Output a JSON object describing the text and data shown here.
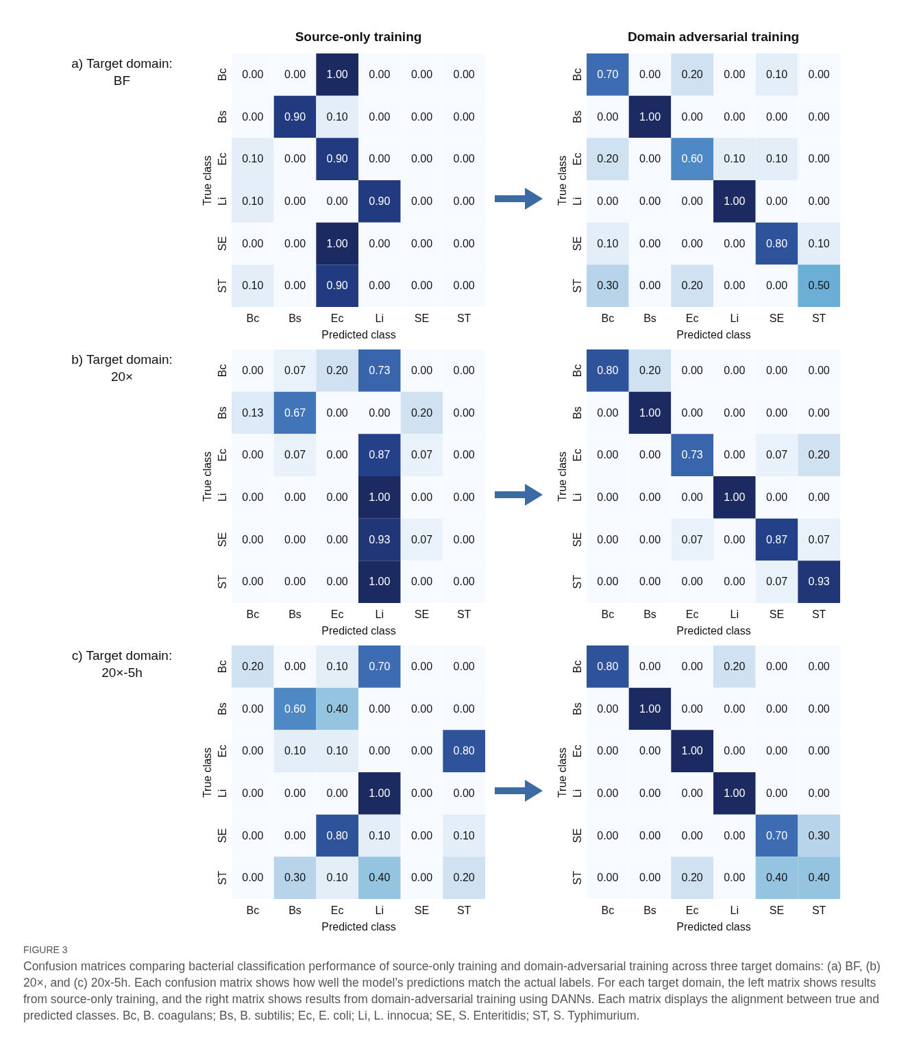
{
  "chart_data": [
    {
      "type": "heatmap",
      "title": "Source-only training",
      "xlabel": "Predicted class",
      "ylabel": "True class",
      "annotations": [
        "a) Target domain:\nBF"
      ],
      "categories": [
        "Bc",
        "Bs",
        "Ec",
        "Li",
        "SE",
        "ST"
      ],
      "y_categories": [
        "Bc",
        "Bs",
        "Ec",
        "Li",
        "SE",
        "ST"
      ],
      "cells": [
        [
          0,
          0,
          1,
          0,
          0,
          0
        ],
        [
          0,
          0.9,
          0.1,
          0,
          0,
          0
        ],
        [
          0.1,
          0,
          0.9,
          0,
          0,
          0
        ],
        [
          0.1,
          0,
          0,
          0.9,
          0,
          0
        ],
        [
          0,
          0,
          1,
          0,
          0,
          0
        ],
        [
          0.1,
          0,
          0.9,
          0,
          0,
          0
        ]
      ],
      "cell_labels": [
        [
          "0.00",
          "0.00",
          "1.00",
          "0.00",
          "0.00",
          "0.00"
        ],
        [
          "0.00",
          "0.90",
          "0.10",
          "0.00",
          "0.00",
          "0.00"
        ],
        [
          "0.10",
          "0.00",
          "0.90",
          "0.00",
          "0.00",
          "0.00"
        ],
        [
          "0.10",
          "0.00",
          "0.00",
          "0.90",
          "0.00",
          "0.00"
        ],
        [
          "0.00",
          "0.00",
          "1.00",
          "0.00",
          "0.00",
          "0.00"
        ],
        [
          "0.10",
          "0.00",
          "0.90",
          "0.00",
          "0.00",
          "0.00"
        ]
      ]
    },
    {
      "type": "heatmap",
      "title": "Domain adversarial training",
      "xlabel": "Predicted class",
      "ylabel": "True class",
      "categories": [
        "Bc",
        "Bs",
        "Ec",
        "Li",
        "SE",
        "ST"
      ],
      "y_categories": [
        "Bc",
        "Bs",
        "Ec",
        "Li",
        "SE",
        "ST"
      ],
      "cells": [
        [
          0.7,
          0,
          0.2,
          0,
          0.1,
          0
        ],
        [
          0,
          1,
          0,
          0,
          0,
          0
        ],
        [
          0.2,
          0,
          0.6,
          0.1,
          0.1,
          0
        ],
        [
          0,
          0,
          0,
          1,
          0,
          0
        ],
        [
          0.1,
          0,
          0,
          0,
          0.8,
          0.1
        ],
        [
          0.3,
          0,
          0.2,
          0,
          0,
          0.5
        ]
      ],
      "cell_labels": [
        [
          "0.70",
          "0.00",
          "0.20",
          "0.00",
          "0.10",
          "0.00"
        ],
        [
          "0.00",
          "1.00",
          "0.00",
          "0.00",
          "0.00",
          "0.00"
        ],
        [
          "0.20",
          "0.00",
          "0.60",
          "0.10",
          "0.10",
          "0.00"
        ],
        [
          "0.00",
          "0.00",
          "0.00",
          "1.00",
          "0.00",
          "0.00"
        ],
        [
          "0.10",
          "0.00",
          "0.00",
          "0.00",
          "0.80",
          "0.10"
        ],
        [
          "0.30",
          "0.00",
          "0.20",
          "0.00",
          "0.00",
          "0.50"
        ]
      ]
    },
    {
      "type": "heatmap",
      "xlabel": "Predicted class",
      "ylabel": "True class",
      "annotations": [
        "b) Target domain:\n20×"
      ],
      "categories": [
        "Bc",
        "Bs",
        "Ec",
        "Li",
        "SE",
        "ST"
      ],
      "y_categories": [
        "Bc",
        "Bs",
        "Ec",
        "Li",
        "SE",
        "ST"
      ],
      "cells": [
        [
          0,
          0.07,
          0.2,
          0.73,
          0,
          0
        ],
        [
          0.13,
          0.67,
          0,
          0,
          0.2,
          0
        ],
        [
          0,
          0.07,
          0,
          0.87,
          0.07,
          0
        ],
        [
          0,
          0,
          0,
          1,
          0,
          0
        ],
        [
          0,
          0,
          0,
          0.93,
          0.07,
          0
        ],
        [
          0,
          0,
          0,
          1,
          0,
          0
        ]
      ],
      "cell_labels": [
        [
          "0.00",
          "0.07",
          "0.20",
          "0.73",
          "0.00",
          "0.00"
        ],
        [
          "0.13",
          "0.67",
          "0.00",
          "0.00",
          "0.20",
          "0.00"
        ],
        [
          "0.00",
          "0.07",
          "0.00",
          "0.87",
          "0.07",
          "0.00"
        ],
        [
          "0.00",
          "0.00",
          "0.00",
          "1.00",
          "0.00",
          "0.00"
        ],
        [
          "0.00",
          "0.00",
          "0.00",
          "0.93",
          "0.07",
          "0.00"
        ],
        [
          "0.00",
          "0.00",
          "0.00",
          "1.00",
          "0.00",
          "0.00"
        ]
      ]
    },
    {
      "type": "heatmap",
      "xlabel": "Predicted class",
      "ylabel": "True class",
      "categories": [
        "Bc",
        "Bs",
        "Ec",
        "Li",
        "SE",
        "ST"
      ],
      "y_categories": [
        "Bc",
        "Bs",
        "Ec",
        "Li",
        "SE",
        "ST"
      ],
      "cells": [
        [
          0.8,
          0.2,
          0,
          0,
          0,
          0
        ],
        [
          0,
          1,
          0,
          0,
          0,
          0
        ],
        [
          0,
          0,
          0.73,
          0,
          0.07,
          0.2
        ],
        [
          0,
          0,
          0,
          1,
          0,
          0
        ],
        [
          0,
          0,
          0.07,
          0,
          0.87,
          0.07
        ],
        [
          0,
          0,
          0,
          0,
          0.07,
          0.93
        ]
      ],
      "cell_labels": [
        [
          "0.80",
          "0.20",
          "0.00",
          "0.00",
          "0.00",
          "0.00"
        ],
        [
          "0.00",
          "1.00",
          "0.00",
          "0.00",
          "0.00",
          "0.00"
        ],
        [
          "0.00",
          "0.00",
          "0.73",
          "0.00",
          "0.07",
          "0.20"
        ],
        [
          "0.00",
          "0.00",
          "0.00",
          "1.00",
          "0.00",
          "0.00"
        ],
        [
          "0.00",
          "0.00",
          "0.07",
          "0.00",
          "0.87",
          "0.07"
        ],
        [
          "0.00",
          "0.00",
          "0.00",
          "0.00",
          "0.07",
          "0.93"
        ]
      ]
    },
    {
      "type": "heatmap",
      "xlabel": "Predicted class",
      "ylabel": "True class",
      "annotations": [
        "c) Target domain:\n20×-5h"
      ],
      "categories": [
        "Bc",
        "Bs",
        "Ec",
        "Li",
        "SE",
        "ST"
      ],
      "y_categories": [
        "Bc",
        "Bs",
        "Ec",
        "Li",
        "SE",
        "ST"
      ],
      "cells": [
        [
          0.2,
          0,
          0.1,
          0.7,
          0,
          0
        ],
        [
          0,
          0.6,
          0.4,
          0,
          0,
          0
        ],
        [
          0,
          0.1,
          0.1,
          0,
          0,
          0.8
        ],
        [
          0,
          0,
          0,
          1,
          0,
          0
        ],
        [
          0,
          0,
          0.8,
          0.1,
          0,
          0.1
        ],
        [
          0,
          0.3,
          0.1,
          0.4,
          0,
          0.2
        ]
      ],
      "cell_labels": [
        [
          "0.20",
          "0.00",
          "0.10",
          "0.70",
          "0.00",
          "0.00"
        ],
        [
          "0.00",
          "0.60",
          "0.40",
          "0.00",
          "0.00",
          "0.00"
        ],
        [
          "0.00",
          "0.10",
          "0.10",
          "0.00",
          "0.00",
          "0.80"
        ],
        [
          "0.00",
          "0.00",
          "0.00",
          "1.00",
          "0.00",
          "0.00"
        ],
        [
          "0.00",
          "0.00",
          "0.80",
          "0.10",
          "0.00",
          "0.10"
        ],
        [
          "0.00",
          "0.30",
          "0.10",
          "0.40",
          "0.00",
          "0.20"
        ]
      ]
    },
    {
      "type": "heatmap",
      "xlabel": "Predicted class",
      "ylabel": "True class",
      "annotations": [
        "FIGURE 3",
        "Confusion matrices comparing bacterial classification performance of source-only training and domain-adversarial training across three target domains: (a) BF, (b) 20×, and (c) 20x-5h. Each confusion matrix shows how well the model’s predictions match the actual labels. For each target domain, the left matrix shows results from source-only training, and the right matrix shows results from domain-adversarial training using DANNs. Each matrix displays the alignment between true and predicted classes. Bc, B. coagulans; Bs, B. subtilis; Ec, E. coli; Li, L. innocua; SE, S. Enteritidis; ST, S. Typhimurium."
      ],
      "categories": [
        "Bc",
        "Bs",
        "Ec",
        "Li",
        "SE",
        "ST"
      ],
      "y_categories": [
        "Bc",
        "Bs",
        "Ec",
        "Li",
        "SE",
        "ST"
      ],
      "cells": [
        [
          0.8,
          0,
          0,
          0.2,
          0,
          0
        ],
        [
          0,
          1,
          0,
          0,
          0,
          0
        ],
        [
          0,
          0,
          1,
          0,
          0,
          0
        ],
        [
          0,
          0,
          0,
          1,
          0,
          0
        ],
        [
          0,
          0,
          0,
          0,
          0.7,
          0.3
        ],
        [
          0,
          0,
          0.2,
          0,
          0.4,
          0.4
        ]
      ],
      "cell_labels": [
        [
          "0.80",
          "0.00",
          "0.00",
          "0.20",
          "0.00",
          "0.00"
        ],
        [
          "0.00",
          "1.00",
          "0.00",
          "0.00",
          "0.00",
          "0.00"
        ],
        [
          "0.00",
          "0.00",
          "1.00",
          "0.00",
          "0.00",
          "0.00"
        ],
        [
          "0.00",
          "0.00",
          "0.00",
          "1.00",
          "0.00",
          "0.00"
        ],
        [
          "0.00",
          "0.00",
          "0.00",
          "0.00",
          "0.70",
          "0.30"
        ],
        [
          "0.00",
          "0.00",
          "0.20",
          "0.00",
          "0.40",
          "0.40"
        ]
      ]
    }
  ]
}
